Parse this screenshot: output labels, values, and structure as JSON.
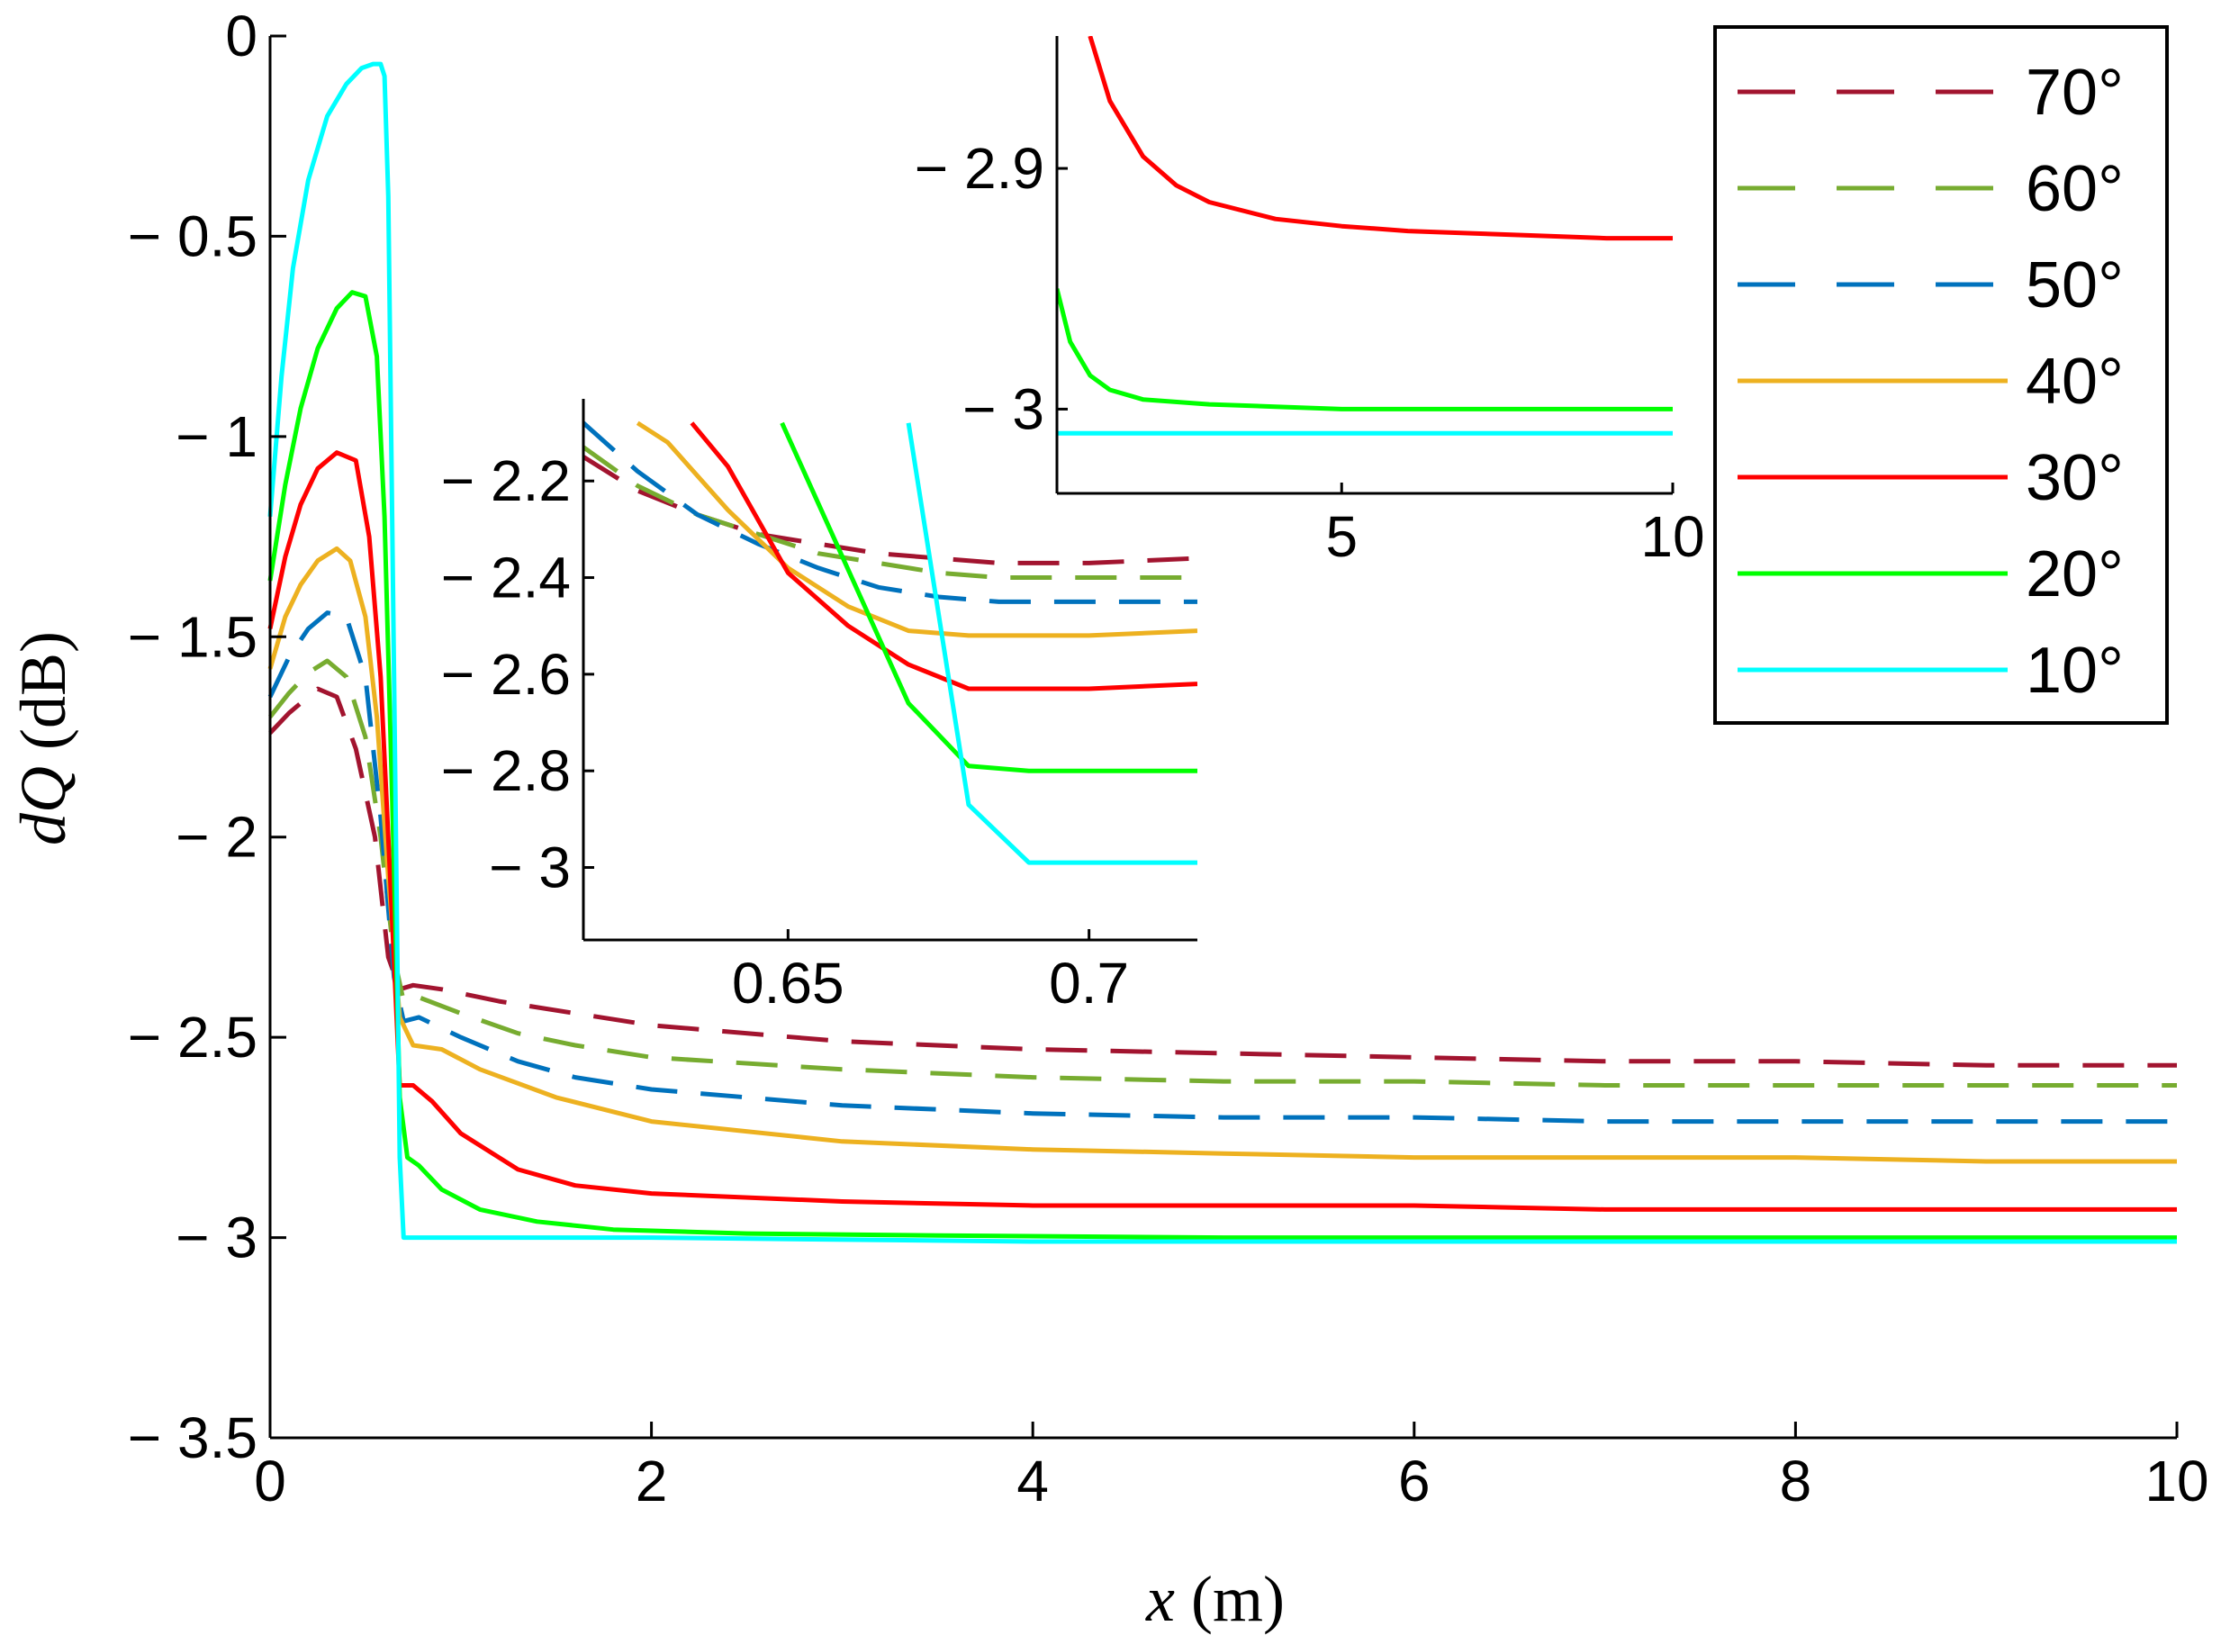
{
  "chart_data": [
    {
      "id": "main",
      "type": "line",
      "title": "",
      "xlabel_var": "x",
      "xlabel_unit": " (m)",
      "ylabel_var": "dQ",
      "ylabel_unit": " (dB)",
      "xlim": [
        0,
        10
      ],
      "ylim": [
        -3.5,
        0
      ],
      "xticks": [
        0,
        2,
        4,
        6,
        8,
        10
      ],
      "xtick_labels": [
        "0",
        "2",
        "4",
        "6",
        "8",
        "10"
      ],
      "yticks": [
        0,
        -0.5,
        -1,
        -1.5,
        -2,
        -2.5,
        -3,
        -3.5
      ],
      "ytick_labels": [
        "0",
        "− 0.5",
        "− 1",
        "− 1.5",
        "− 2",
        "− 2.5",
        "− 3",
        "− 3.5"
      ],
      "grid": false,
      "series": [
        {
          "name": "70°",
          "color": "#A2142F",
          "dash": true,
          "x": [
            0,
            0.1,
            0.2,
            0.25,
            0.35,
            0.45,
            0.55,
            0.62,
            0.68,
            0.75,
            0.9,
            1.2,
            1.6,
            2,
            3,
            4,
            5,
            6,
            7,
            8,
            9,
            10
          ],
          "y": [
            -1.74,
            -1.69,
            -1.65,
            -1.63,
            -1.65,
            -1.78,
            -2.0,
            -2.3,
            -2.38,
            -2.37,
            -2.38,
            -2.41,
            -2.44,
            -2.47,
            -2.51,
            -2.53,
            -2.54,
            -2.55,
            -2.56,
            -2.56,
            -2.57,
            -2.57
          ]
        },
        {
          "name": "60°",
          "color": "#77AC30",
          "dash": true,
          "x": [
            0,
            0.1,
            0.2,
            0.3,
            0.4,
            0.5,
            0.58,
            0.65,
            0.7,
            0.78,
            1,
            1.3,
            1.6,
            2,
            3,
            4,
            5,
            6,
            7,
            8,
            9,
            10
          ],
          "y": [
            -1.7,
            -1.64,
            -1.59,
            -1.56,
            -1.6,
            -1.75,
            -2.0,
            -2.3,
            -2.41,
            -2.4,
            -2.44,
            -2.49,
            -2.52,
            -2.55,
            -2.58,
            -2.6,
            -2.61,
            -2.61,
            -2.62,
            -2.62,
            -2.62,
            -2.62
          ]
        },
        {
          "name": "50°",
          "color": "#0072BD",
          "dash": true,
          "x": [
            0,
            0.1,
            0.2,
            0.3,
            0.4,
            0.5,
            0.58,
            0.65,
            0.7,
            0.78,
            1,
            1.3,
            1.6,
            2,
            3,
            4,
            5,
            6,
            7,
            8,
            9,
            10
          ],
          "y": [
            -1.65,
            -1.55,
            -1.48,
            -1.44,
            -1.45,
            -1.6,
            -1.95,
            -2.35,
            -2.46,
            -2.45,
            -2.5,
            -2.56,
            -2.6,
            -2.63,
            -2.67,
            -2.69,
            -2.7,
            -2.7,
            -2.71,
            -2.71,
            -2.71,
            -2.71
          ]
        },
        {
          "name": "40°",
          "color": "#EDB120",
          "dash": false,
          "x": [
            0,
            0.08,
            0.16,
            0.25,
            0.35,
            0.42,
            0.5,
            0.56,
            0.62,
            0.68,
            0.75,
            0.9,
            1.1,
            1.5,
            2,
            3,
            4,
            5,
            6,
            7,
            8,
            9,
            10
          ],
          "y": [
            -1.58,
            -1.45,
            -1.37,
            -1.31,
            -1.28,
            -1.31,
            -1.45,
            -1.7,
            -2.1,
            -2.45,
            -2.52,
            -2.53,
            -2.58,
            -2.65,
            -2.71,
            -2.76,
            -2.78,
            -2.79,
            -2.8,
            -2.8,
            -2.8,
            -2.81,
            -2.81
          ]
        },
        {
          "name": "30°",
          "color": "#FF0000",
          "dash": false,
          "x": [
            0,
            0.08,
            0.16,
            0.25,
            0.35,
            0.45,
            0.52,
            0.58,
            0.63,
            0.68,
            0.75,
            0.85,
            1.0,
            1.3,
            1.6,
            2,
            3,
            4,
            5,
            6,
            7,
            8,
            9,
            10
          ],
          "y": [
            -1.48,
            -1.3,
            -1.17,
            -1.08,
            -1.04,
            -1.06,
            -1.25,
            -1.6,
            -2.1,
            -2.62,
            -2.62,
            -2.66,
            -2.74,
            -2.83,
            -2.87,
            -2.89,
            -2.91,
            -2.92,
            -2.92,
            -2.92,
            -2.93,
            -2.93,
            -2.93,
            -2.93
          ]
        },
        {
          "name": "20°",
          "color": "#00FF00",
          "dash": false,
          "x": [
            0,
            0.08,
            0.16,
            0.25,
            0.35,
            0.43,
            0.5,
            0.56,
            0.6,
            0.64,
            0.68,
            0.72,
            0.78,
            0.9,
            1.1,
            1.4,
            1.8,
            2.5,
            3.5,
            5,
            7,
            10
          ],
          "y": [
            -1.36,
            -1.12,
            -0.93,
            -0.78,
            -0.68,
            -0.64,
            -0.65,
            -0.8,
            -1.2,
            -1.9,
            -2.65,
            -2.8,
            -2.82,
            -2.88,
            -2.93,
            -2.96,
            -2.98,
            -2.99,
            -2.995,
            -3.0,
            -3.0,
            -3.0
          ]
        },
        {
          "name": "10°",
          "color": "#00FFFF",
          "dash": false,
          "x": [
            0,
            0.06,
            0.12,
            0.2,
            0.3,
            0.4,
            0.48,
            0.54,
            0.58,
            0.6,
            0.62,
            0.64,
            0.66,
            0.68,
            0.7,
            1.0,
            2,
            4,
            6,
            8,
            10
          ],
          "y": [
            -1.2,
            -0.85,
            -0.58,
            -0.36,
            -0.2,
            -0.12,
            -0.08,
            -0.07,
            -0.07,
            -0.1,
            -0.4,
            -1.2,
            -2.0,
            -2.8,
            -3.0,
            -3.0,
            -3.0,
            -3.01,
            -3.01,
            -3.01,
            -3.01
          ]
        }
      ]
    },
    {
      "id": "inset-zoom-x",
      "type": "line",
      "xlim": [
        0.616,
        0.718
      ],
      "ylim": [
        -3.15,
        -2.03
      ],
      "xticks": [
        0.65,
        0.7
      ],
      "xtick_labels": [
        "0.65",
        "0.7"
      ],
      "yticks": [
        -2.2,
        -2.4,
        -2.6,
        -2.8,
        -3
      ],
      "ytick_labels": [
        "− 2.2",
        "− 2.4",
        "− 2.6",
        "− 2.8",
        "− 3"
      ],
      "series": [
        {
          "name": "70°",
          "color": "#A2142F",
          "dash": true,
          "x": [
            0.616,
            0.625,
            0.635,
            0.645,
            0.655,
            0.665,
            0.675,
            0.685,
            0.7,
            0.718
          ],
          "y": [
            -2.15,
            -2.22,
            -2.27,
            -2.31,
            -2.33,
            -2.35,
            -2.36,
            -2.37,
            -2.37,
            -2.36
          ]
        },
        {
          "name": "60°",
          "color": "#77AC30",
          "dash": true,
          "x": [
            0.616,
            0.625,
            0.635,
            0.645,
            0.655,
            0.665,
            0.675,
            0.685,
            0.7,
            0.718
          ],
          "y": [
            -2.13,
            -2.21,
            -2.27,
            -2.31,
            -2.35,
            -2.37,
            -2.39,
            -2.4,
            -2.4,
            -2.4
          ]
        },
        {
          "name": "50°",
          "color": "#0072BD",
          "dash": true,
          "x": [
            0.616,
            0.625,
            0.635,
            0.645,
            0.655,
            0.665,
            0.675,
            0.685,
            0.7,
            0.718
          ],
          "y": [
            -2.08,
            -2.18,
            -2.27,
            -2.33,
            -2.38,
            -2.42,
            -2.44,
            -2.45,
            -2.45,
            -2.45
          ]
        },
        {
          "name": "40°",
          "color": "#EDB120",
          "dash": false,
          "x": [
            0.625,
            0.63,
            0.64,
            0.65,
            0.66,
            0.67,
            0.68,
            0.69,
            0.7,
            0.718
          ],
          "y": [
            -2.08,
            -2.12,
            -2.26,
            -2.38,
            -2.46,
            -2.51,
            -2.52,
            -2.52,
            -2.52,
            -2.51
          ]
        },
        {
          "name": "30°",
          "color": "#FF0000",
          "dash": false,
          "x": [
            0.634,
            0.64,
            0.65,
            0.66,
            0.67,
            0.68,
            0.69,
            0.7,
            0.718
          ],
          "y": [
            -2.08,
            -2.17,
            -2.39,
            -2.5,
            -2.58,
            -2.63,
            -2.63,
            -2.63,
            -2.62
          ]
        },
        {
          "name": "20°",
          "color": "#00FF00",
          "dash": false,
          "x": [
            0.649,
            0.67,
            0.68,
            0.69,
            0.7,
            0.718
          ],
          "y": [
            -2.08,
            -2.66,
            -2.79,
            -2.8,
            -2.8,
            -2.8
          ]
        },
        {
          "name": "10°",
          "color": "#00FFFF",
          "dash": false,
          "x": [
            0.67,
            0.68,
            0.69,
            0.7,
            0.718
          ],
          "y": [
            -2.08,
            -2.87,
            -2.99,
            -2.99,
            -2.99
          ]
        }
      ]
    },
    {
      "id": "inset-zoom-y",
      "type": "line",
      "xlim": [
        0.7,
        10
      ],
      "ylim": [
        -3.035,
        -2.845
      ],
      "xticks": [
        5,
        10
      ],
      "xtick_labels": [
        "5",
        "10"
      ],
      "yticks": [
        -2.9,
        -3
      ],
      "ytick_labels": [
        "− 2.9",
        "− 3"
      ],
      "series": [
        {
          "name": "30°",
          "color": "#FF0000",
          "dash": false,
          "x": [
            1.2,
            1.5,
            2,
            2.5,
            3,
            4,
            5,
            6,
            7,
            8,
            9,
            10
          ],
          "y": [
            -2.845,
            -2.872,
            -2.895,
            -2.907,
            -2.914,
            -2.921,
            -2.924,
            -2.926,
            -2.927,
            -2.928,
            -2.929,
            -2.929
          ]
        },
        {
          "name": "20°",
          "color": "#00FF00",
          "dash": false,
          "x": [
            0.7,
            0.9,
            1.2,
            1.5,
            2,
            3,
            4,
            5,
            6,
            7,
            8,
            9,
            10
          ],
          "y": [
            -2.95,
            -2.972,
            -2.986,
            -2.992,
            -2.996,
            -2.998,
            -2.999,
            -3.0,
            -3.0,
            -3.0,
            -3.0,
            -3.0,
            -3.0
          ]
        },
        {
          "name": "10°",
          "color": "#00FFFF",
          "dash": false,
          "x": [
            0.7,
            10
          ],
          "y": [
            -3.01,
            -3.01
          ]
        }
      ]
    }
  ],
  "legend": {
    "placement": "top-right",
    "entries": [
      {
        "label": "70°",
        "color": "#A2142F",
        "dash": true
      },
      {
        "label": "60°",
        "color": "#77AC30",
        "dash": true
      },
      {
        "label": "50°",
        "color": "#0072BD",
        "dash": true
      },
      {
        "label": "40°",
        "color": "#EDB120",
        "dash": false
      },
      {
        "label": "30°",
        "color": "#FF0000",
        "dash": false
      },
      {
        "label": "20°",
        "color": "#00FF00",
        "dash": false
      },
      {
        "label": "10°",
        "color": "#00FFFF",
        "dash": false
      }
    ]
  }
}
